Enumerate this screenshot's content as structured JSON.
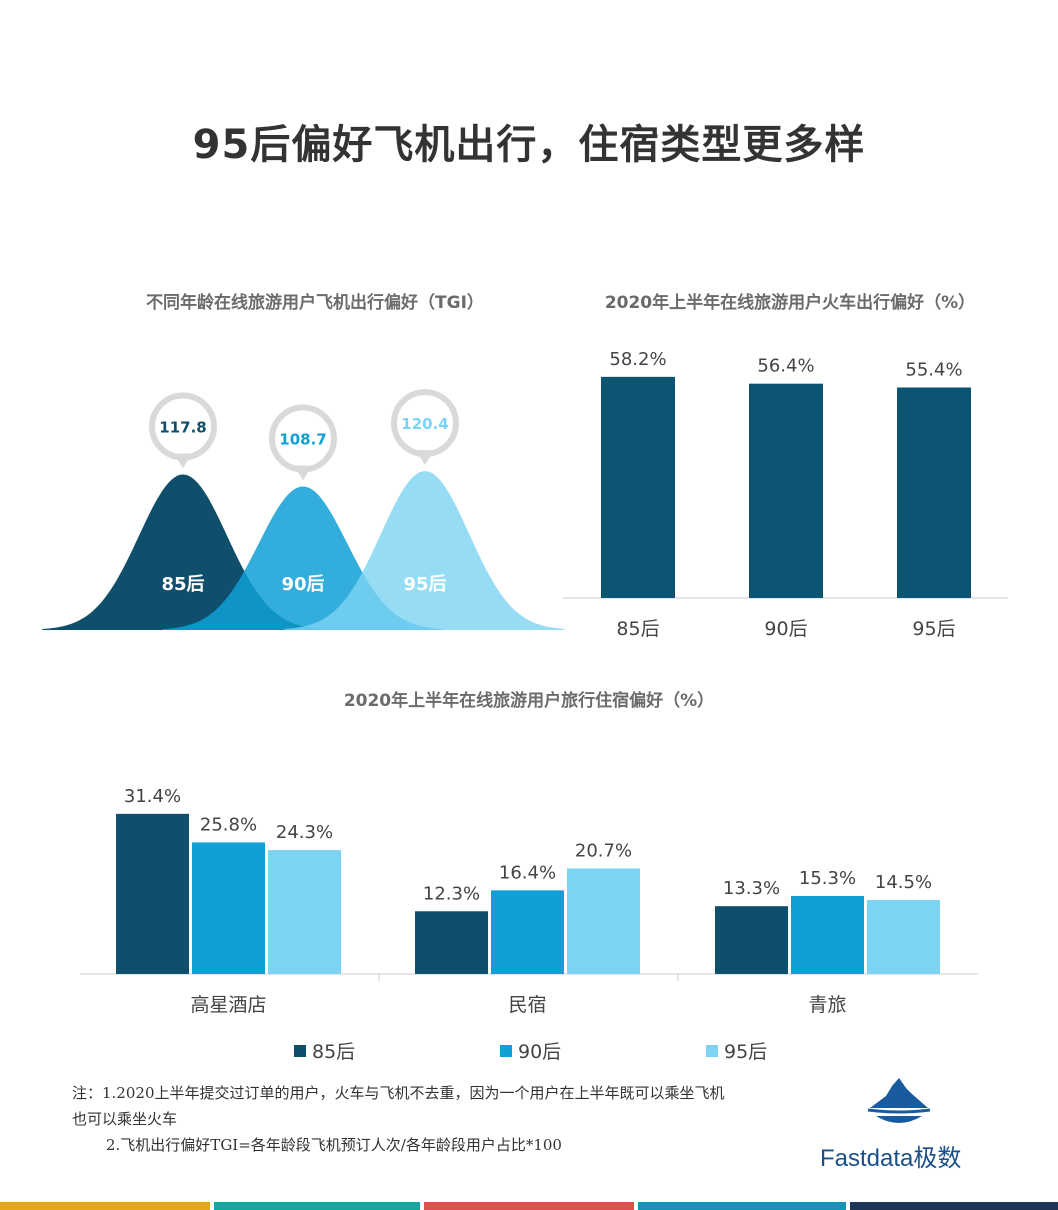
{
  "page": {
    "title": "95后偏好飞机出行，住宿类型更多样"
  },
  "colors": {
    "c85": "#0f4f6b",
    "c90": "#0fa0d6",
    "c95": "#7dd3f2",
    "dark_bar": "#0b5472",
    "strip": [
      "#e6a717",
      "#13a89e",
      "#e04e4e",
      "#1693b7",
      "#1d3557"
    ]
  },
  "chart_data": [
    {
      "type": "area",
      "title": "不同年龄在线旅游用户飞机出行偏好（TGI）",
      "categories": [
        "85后",
        "90后",
        "95后"
      ],
      "values": [
        117.8,
        108.7,
        120.4
      ],
      "value_labels": [
        "117.8",
        "108.7",
        "120.4"
      ]
    },
    {
      "type": "bar",
      "title": "2020年上半年在线旅游用户火车出行偏好（%）",
      "categories": [
        "85后",
        "90后",
        "95后"
      ],
      "values": [
        58.2,
        56.4,
        55.4
      ],
      "value_labels": [
        "58.2%",
        "56.4%",
        "55.4%"
      ],
      "ylim": [
        0,
        65
      ]
    },
    {
      "type": "bar",
      "title": "2020年上半年在线旅游用户旅行住宿偏好（%）",
      "categories": [
        "高星酒店",
        "民宿",
        "青旅"
      ],
      "series": [
        {
          "name": "85后",
          "values": [
            31.4,
            12.3,
            13.3
          ],
          "labels": [
            "31.4%",
            "12.3%",
            "13.3%"
          ]
        },
        {
          "name": "90后",
          "values": [
            25.8,
            16.4,
            15.3
          ],
          "labels": [
            "25.8%",
            "16.4%",
            "15.3%"
          ]
        },
        {
          "name": "95后",
          "values": [
            24.3,
            20.7,
            14.5
          ],
          "labels": [
            "24.3%",
            "20.7%",
            "14.5%"
          ]
        }
      ],
      "ylim": [
        0,
        35
      ]
    }
  ],
  "legend": [
    "85后",
    "90后",
    "95后"
  ],
  "note": {
    "line1": "注：1.2020上半年提交过订单的用户，火车与飞机不去重，因为一个用户在上半年既可以乘坐飞机",
    "line2": "也可以乘坐火车",
    "line3": "2.飞机出行偏好TGI=各年龄段飞机预订人次/各年龄段用户占比*100"
  },
  "brand": {
    "name": "Fastdata极数",
    "icon": "iceberg-logo-icon"
  }
}
